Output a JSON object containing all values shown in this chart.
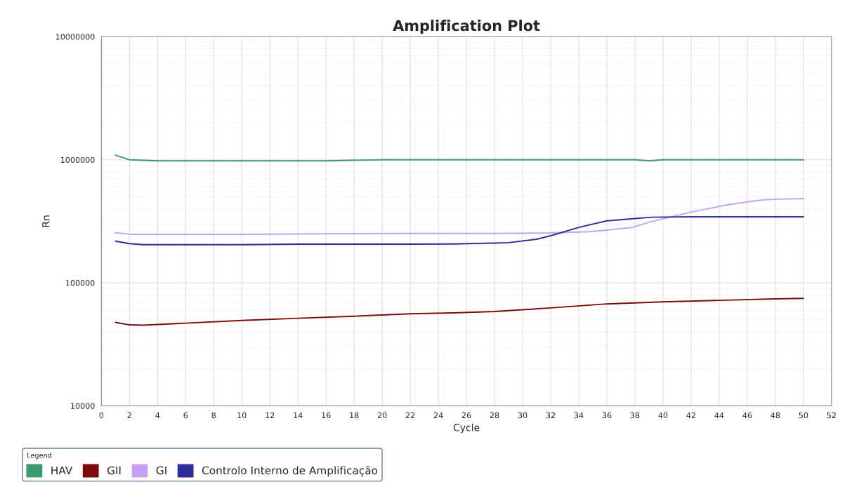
{
  "chart_data": {
    "type": "line",
    "title": "Amplification Plot",
    "xlabel": "Cycle",
    "ylabel": "Rn",
    "legend_title": "Legend",
    "log": "y",
    "grid": true,
    "legend": "bottom",
    "marker": "none",
    "line_style": "solid",
    "xlim": [
      0,
      52
    ],
    "xticks": [
      0,
      2,
      4,
      6,
      8,
      10,
      12,
      14,
      16,
      18,
      20,
      22,
      24,
      26,
      28,
      30,
      32,
      34,
      36,
      38,
      40,
      42,
      44,
      46,
      48,
      50,
      52
    ],
    "ylim": [
      10000,
      10000000
    ],
    "yticks": [
      10000,
      100000,
      1000000,
      10000000
    ],
    "series": [
      {
        "name": "HAV",
        "color": "#3a9a6e",
        "x": [
          1,
          2,
          4,
          10,
          16,
          20,
          24,
          30,
          36,
          38,
          39,
          40,
          44,
          50
        ],
        "values": [
          1090000,
          1000000,
          980000,
          980000,
          980000,
          1000000,
          1000000,
          1000000,
          1000000,
          1000000,
          980000,
          1000000,
          1000000,
          1000000
        ]
      },
      {
        "name": "GII",
        "color": "#7b0a0a",
        "x": [
          1,
          2,
          3,
          6,
          10,
          14,
          18,
          22,
          25,
          28,
          32,
          36,
          40,
          44,
          48,
          50
        ],
        "values": [
          47700,
          45500,
          45300,
          47000,
          49500,
          51500,
          53500,
          56000,
          57000,
          58500,
          62500,
          67400,
          70000,
          72000,
          74000,
          74800
        ]
      },
      {
        "name": "GI",
        "color": "#c9a0f0",
        "x": [
          1,
          2,
          4,
          10,
          16,
          22,
          28,
          32,
          34.7,
          36,
          37.8,
          39,
          40.3,
          42,
          44.3,
          46,
          47.3,
          48.5,
          50
        ],
        "values": [
          255000,
          248000,
          248000,
          248000,
          250000,
          252000,
          252000,
          254000,
          260000,
          268000,
          282000,
          310000,
          338000,
          375000,
          424000,
          455000,
          474000,
          480000,
          482000
        ]
      },
      {
        "name": "Controlo Interno de Amplificação",
        "color": "#2e2e9a",
        "x": [
          1,
          2,
          3,
          6,
          10,
          14,
          18,
          22,
          25,
          28,
          29,
          31,
          32.1,
          34,
          36,
          38,
          39.2,
          42,
          46,
          50
        ],
        "values": [
          218000,
          208000,
          204000,
          204000,
          204000,
          206000,
          206000,
          206000,
          207000,
          210000,
          212000,
          226000,
          243000,
          282000,
          319000,
          333000,
          341000,
          344000,
          344000,
          344000
        ]
      }
    ]
  }
}
